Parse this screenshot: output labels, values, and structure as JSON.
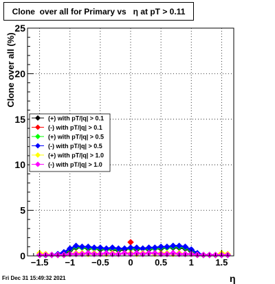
{
  "title": "Clone  over all for Primary vs   η at pT > 0.11",
  "timestamp": "Fri Dec 31 15:49:32 2021",
  "chart_data": {
    "type": "scatter",
    "xlabel": "η",
    "ylabel": "Clone  over all (%)",
    "xlim": [
      -1.7,
      1.7
    ],
    "ylim": [
      0,
      25
    ],
    "x_ticks": [
      "−1.5",
      "−1",
      "−0.5",
      "0",
      "0.5",
      "1",
      "1.5"
    ],
    "x_tick_values": [
      -1.5,
      -1,
      -0.5,
      0,
      0.5,
      1,
      1.5
    ],
    "y_ticks": [
      "0",
      "5",
      "10",
      "15",
      "20",
      "25"
    ],
    "y_tick_values": [
      0,
      5,
      10,
      15,
      20,
      25
    ],
    "grid": true,
    "legend_position": "middle-left",
    "x": [
      -1.5,
      -1.4,
      -1.3,
      -1.2,
      -1.1,
      -1.0,
      -0.9,
      -0.8,
      -0.7,
      -0.6,
      -0.5,
      -0.4,
      -0.3,
      -0.2,
      -0.1,
      0.0,
      0.1,
      0.2,
      0.3,
      0.4,
      0.5,
      0.6,
      0.7,
      0.8,
      0.9,
      1.0,
      1.1,
      1.2,
      1.3,
      1.4,
      1.5,
      1.6
    ],
    "series": [
      {
        "name": "(+) with pT/|q| > 0.1",
        "color": "#000000",
        "values": [
          0.1,
          0.1,
          0.1,
          0.1,
          0.2,
          0.6,
          0.9,
          0.9,
          0.8,
          0.8,
          0.7,
          0.7,
          0.7,
          0.6,
          0.7,
          0.8,
          0.7,
          0.8,
          0.7,
          0.8,
          0.8,
          0.9,
          0.9,
          0.9,
          0.8,
          0.5,
          0.2,
          0.1,
          0.1,
          0.1,
          0.1,
          0.1
        ]
      },
      {
        "name": "(-) with pT/|q| > 0.1",
        "color": "#ff0000",
        "values": [
          0.0,
          0.0,
          0.0,
          0.0,
          0.0,
          0.0,
          0.0,
          0.0,
          0.0,
          0.0,
          0.0,
          0.0,
          0.0,
          0.0,
          0.0,
          1.5,
          0.0,
          0.0,
          0.0,
          0.0,
          0.0,
          0.0,
          0.0,
          0.0,
          0.0,
          0.0,
          0.0,
          0.0,
          0.0,
          0.0,
          0.0,
          0.0
        ]
      },
      {
        "name": "(+) with pT/|q| > 0.5",
        "color": "#00ff00",
        "values": [
          0.1,
          0.1,
          0.1,
          0.1,
          0.3,
          0.7,
          1.0,
          0.9,
          0.9,
          0.8,
          0.8,
          0.7,
          0.8,
          0.7,
          0.8,
          0.8,
          0.8,
          0.8,
          0.8,
          0.8,
          0.9,
          0.9,
          1.0,
          1.0,
          0.9,
          0.6,
          0.2,
          0.1,
          0.1,
          0.1,
          0.1,
          0.1
        ]
      },
      {
        "name": "(-) with pT/|q| > 0.5",
        "color": "#0000ff",
        "values": [
          0.1,
          0.1,
          0.1,
          0.2,
          0.4,
          0.8,
          1.1,
          1.0,
          1.0,
          0.9,
          0.9,
          0.8,
          0.9,
          0.8,
          0.8,
          0.9,
          0.9,
          0.8,
          0.9,
          0.9,
          1.0,
          1.0,
          1.1,
          1.1,
          1.0,
          0.7,
          0.3,
          0.1,
          0.1,
          0.1,
          0.1,
          0.1
        ]
      },
      {
        "name": "(+) with pT/|q| > 1.0",
        "color": "#ffff00",
        "values": [
          0.3,
          0.2,
          0.1,
          0.1,
          0.1,
          0.2,
          0.3,
          0.3,
          0.2,
          0.3,
          0.2,
          0.2,
          0.3,
          0.2,
          0.3,
          0.3,
          0.2,
          0.3,
          0.3,
          0.2,
          0.3,
          0.3,
          0.2,
          0.3,
          0.2,
          0.2,
          0.1,
          0.1,
          0.1,
          0.1,
          0.3,
          0.2
        ]
      },
      {
        "name": "(-) with pT/|q| > 1.0",
        "color": "#ff00ff",
        "values": [
          0.1,
          0.1,
          0.1,
          0.1,
          0.1,
          0.2,
          0.2,
          0.2,
          0.3,
          0.2,
          0.2,
          0.3,
          0.2,
          0.2,
          0.3,
          0.2,
          0.3,
          0.2,
          0.3,
          0.3,
          0.2,
          0.2,
          0.3,
          0.2,
          0.2,
          0.2,
          0.1,
          0.1,
          0.1,
          0.1,
          0.1,
          0.1
        ]
      }
    ]
  }
}
